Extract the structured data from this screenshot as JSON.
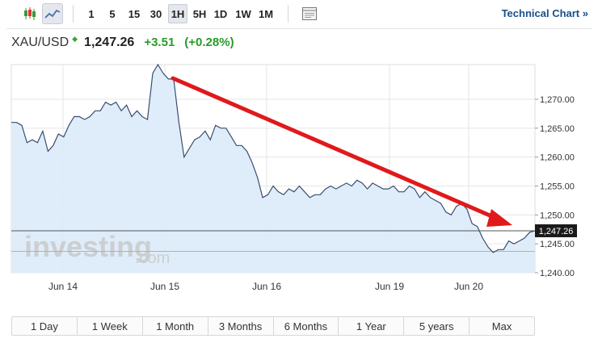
{
  "toolbar": {
    "chart_type_icons": [
      "candlestick-icon",
      "line-chart-icon"
    ],
    "intervals": [
      "1",
      "5",
      "15",
      "30",
      "1H",
      "5H",
      "1D",
      "1W",
      "1M"
    ],
    "active_interval": "1H",
    "settings_icon": "window-icon",
    "technical_chart_label": "Technical Chart",
    "technical_chart_arrow": "»"
  },
  "quote": {
    "symbol": "XAU/USD",
    "direction_glyph": "◆",
    "price": "1,247.26",
    "change": "+3.51",
    "change_pct": "(+0.28%)",
    "color_up": "#2a9a2a"
  },
  "watermark": {
    "brand": "investing",
    "suffix": ".com"
  },
  "chart_data": {
    "type": "area",
    "x_ticks": [
      "Jun 14",
      "Jun 15",
      "Jun 16",
      "Jun 19",
      "Jun 20"
    ],
    "y_ticks": [
      1240,
      1245,
      1250,
      1255,
      1260,
      1265,
      1270
    ],
    "y_tick_labels": [
      "1,240.00",
      "1,245.00",
      "1,250.00",
      "1,255.00",
      "1,260.00",
      "1,265.00",
      "1,270.00"
    ],
    "ylim": [
      1240,
      1276
    ],
    "current_label": "1,247.26",
    "current_value": 1247.26,
    "reference_value": 1243.7,
    "series_values": [
      1266.0,
      1266.0,
      1265.5,
      1262.5,
      1263.0,
      1262.5,
      1264.5,
      1261.0,
      1262.0,
      1264.0,
      1263.5,
      1265.5,
      1267.0,
      1267.0,
      1266.5,
      1267.0,
      1268.0,
      1268.0,
      1269.5,
      1269.0,
      1269.5,
      1268.0,
      1269.0,
      1267.0,
      1268.0,
      1267.0,
      1266.5,
      1274.5,
      1276.0,
      1274.5,
      1273.5,
      1273.5,
      1266.0,
      1260.0,
      1261.5,
      1263.0,
      1263.5,
      1264.5,
      1263.0,
      1265.5,
      1265.0,
      1265.0,
      1263.5,
      1262.0,
      1262.0,
      1261.0,
      1259.0,
      1256.5,
      1253.0,
      1253.5,
      1255.0,
      1254.0,
      1253.5,
      1254.5,
      1254.0,
      1255.0,
      1254.0,
      1253.0,
      1253.5,
      1253.5,
      1254.5,
      1255.0,
      1254.5,
      1255.0,
      1255.5,
      1255.0,
      1256.0,
      1255.5,
      1254.5,
      1255.5,
      1255.0,
      1254.5,
      1254.5,
      1255.0,
      1254.0,
      1254.0,
      1255.0,
      1254.5,
      1253.0,
      1254.0,
      1253.0,
      1252.5,
      1252.0,
      1250.5,
      1250.0,
      1251.5,
      1252.0,
      1251.0,
      1248.5,
      1248.0,
      1246.0,
      1244.5,
      1243.5,
      1244.0,
      1244.0,
      1245.5,
      1245.0,
      1245.5,
      1246.0,
      1247.0,
      1247.26
    ],
    "colors": {
      "line": "#3a4d6e",
      "fill": "#dcebfa",
      "current_line": "#555555",
      "reference_line": "#d9a0a0",
      "annotation_arrow": "#e0191c",
      "label_bg": "#1a1a1a",
      "grid": "#e6e6e6"
    }
  },
  "ranges": [
    "1 Day",
    "1 Week",
    "1 Month",
    "3 Months",
    "6 Months",
    "1 Year",
    "5 years",
    "Max"
  ]
}
